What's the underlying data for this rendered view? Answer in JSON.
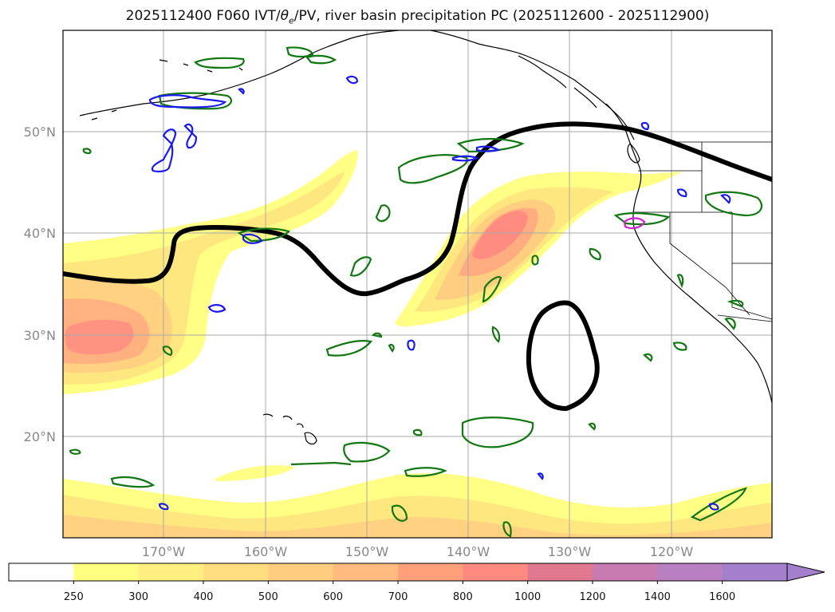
{
  "title": {
    "prefix": "2025112400 F060 IVT/",
    "theta": "θ",
    "theta_sub": "e",
    "suffix": "/PV, river basin precipitation PC (2025112600 - 2025112900)"
  },
  "lat_labels": [
    "50°N",
    "40°N",
    "30°N",
    "20°N"
  ],
  "lon_labels": [
    "170°W",
    "160°W",
    "150°W",
    "140°W",
    "130°W",
    "120°W"
  ],
  "colorbar": {
    "ticks": [
      "250",
      "300",
      "400",
      "500",
      "600",
      "700",
      "800",
      "1000",
      "1200",
      "1400",
      "1600"
    ],
    "colors": [
      "#ffffff",
      "#ffff80",
      "#ffee80",
      "#ffdd80",
      "#ffcc80",
      "#ffbb80",
      "#ffa07a",
      "#ff8a80",
      "#e07890",
      "#c77bb0",
      "#b880c0",
      "#a480cc"
    ]
  },
  "colors": {
    "ivt_contour": "#000000",
    "precip_green": "#117711",
    "precip_blue": "#1a1aee",
    "precip_magenta": "#cc22cc",
    "grid": "#aaaaaa",
    "coast": "#000000"
  }
}
